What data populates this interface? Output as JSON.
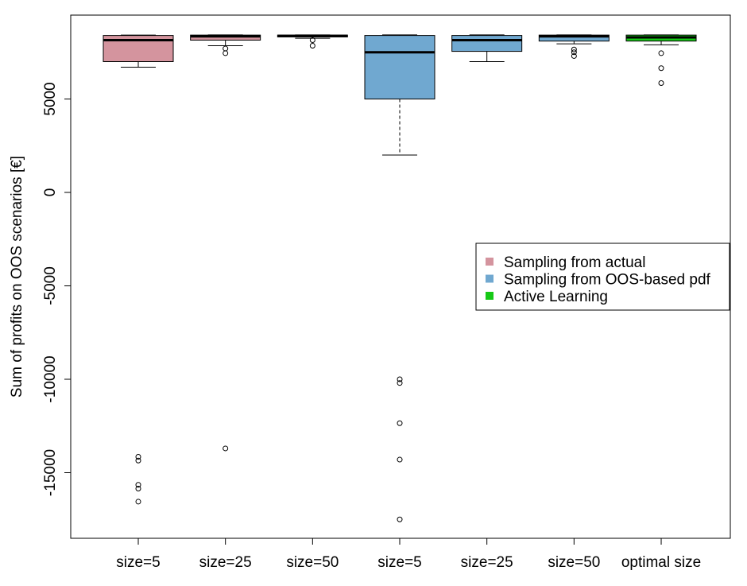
{
  "chart_data": {
    "type": "box",
    "title": "",
    "xlabel": "",
    "ylabel": "Sum of profits on OOS scenarios [€]",
    "ylim": [
      -18500,
      9000
    ],
    "yticks": [
      -15000,
      -10000,
      -5000,
      0,
      5000
    ],
    "y_tick_labels": [
      "-15000",
      "-10000",
      "-5000",
      "0",
      "5000"
    ],
    "grid": false,
    "legend_position": "right",
    "legend": [
      {
        "label": "Sampling from actual",
        "color": "#d4949e"
      },
      {
        "label": "Sampling from OOS-based pdf",
        "color": "#70a8d0"
      },
      {
        "label": "Active Learning",
        "color": "#16c916"
      }
    ],
    "boxes": [
      {
        "label": "size=5",
        "group": "Sampling from actual",
        "color": "#d4949e",
        "whisker_low": 6700,
        "q1": 7000,
        "median": 8150,
        "q3": 8400,
        "whisker_high": 8420,
        "whisker_style": "solid",
        "outliers": [
          -14150,
          -14350,
          -15650,
          -15850,
          -16550
        ]
      },
      {
        "label": "size=25",
        "group": "Sampling from actual",
        "color": "#d4949e",
        "whisker_low": 7850,
        "q1": 8150,
        "median": 8350,
        "q3": 8420,
        "whisker_high": 8430,
        "whisker_style": "solid",
        "outliers": [
          7700,
          7450,
          -13700
        ]
      },
      {
        "label": "size=50",
        "group": "Sampling from actual",
        "color": "#d4949e",
        "whisker_low": 8250,
        "q1": 8320,
        "median": 8380,
        "q3": 8420,
        "whisker_high": 8430,
        "whisker_style": "solid",
        "outliers": [
          8150,
          7850
        ]
      },
      {
        "label": "size=5",
        "group": "Sampling from OOS-based pdf",
        "color": "#70a8d0",
        "whisker_low": 2000,
        "q1": 5000,
        "median": 7500,
        "q3": 8400,
        "whisker_high": 8430,
        "whisker_style": "dashed",
        "outliers": [
          -10000,
          -10200,
          -12350,
          -14300,
          -17500
        ]
      },
      {
        "label": "size=25",
        "group": "Sampling from OOS-based pdf",
        "color": "#70a8d0",
        "whisker_low": 7000,
        "q1": 7550,
        "median": 8150,
        "q3": 8400,
        "whisker_high": 8430,
        "whisker_style": "solid",
        "outliers": []
      },
      {
        "label": "size=50",
        "group": "Sampling from OOS-based pdf",
        "color": "#70a8d0",
        "whisker_low": 7950,
        "q1": 8100,
        "median": 8350,
        "q3": 8420,
        "whisker_high": 8430,
        "whisker_style": "solid",
        "outliers": [
          7650,
          7500,
          7300
        ]
      },
      {
        "label": "optimal size",
        "group": "Active Learning",
        "color": "#16c916",
        "whisker_low": 7900,
        "q1": 8100,
        "median": 8300,
        "q3": 8420,
        "whisker_high": 8430,
        "whisker_style": "solid",
        "outliers": [
          7450,
          6650,
          5850
        ]
      }
    ]
  }
}
